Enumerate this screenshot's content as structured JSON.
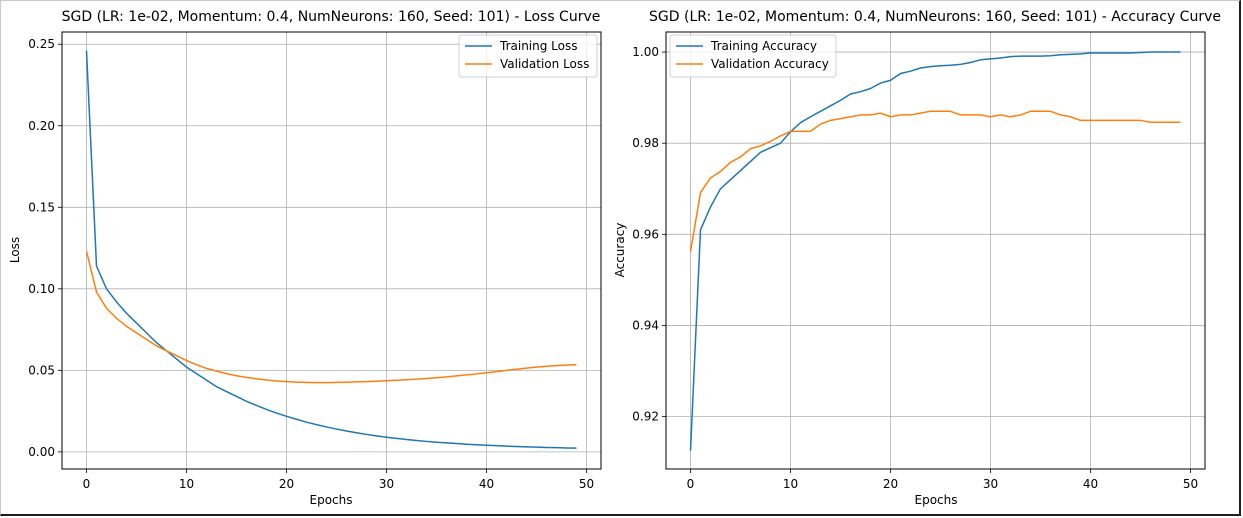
{
  "chart_data": [
    {
      "type": "line",
      "title": "SGD (LR: 1e-02, Momentum: 0.4, NumNeurons: 160, Seed: 101) - Loss Curve",
      "xlabel": "Epochs",
      "ylabel": "Loss",
      "xlim": [
        -2.45,
        51.45
      ],
      "ylim": [
        -0.0105,
        0.2575
      ],
      "xticks": [
        0,
        10,
        20,
        30,
        40,
        50
      ],
      "xtick_labels": [
        "0",
        "10",
        "20",
        "30",
        "40",
        "50"
      ],
      "yticks": [
        0.0,
        0.05,
        0.1,
        0.15,
        0.2,
        0.25
      ],
      "ytick_labels": [
        "0.00",
        "0.05",
        "0.10",
        "0.15",
        "0.20",
        "0.25"
      ],
      "grid": true,
      "legend": "upper right",
      "x": [
        0,
        1,
        2,
        3,
        4,
        5,
        6,
        7,
        8,
        9,
        10,
        11,
        12,
        13,
        14,
        15,
        16,
        17,
        18,
        19,
        20,
        21,
        22,
        23,
        24,
        25,
        26,
        27,
        28,
        29,
        30,
        31,
        32,
        33,
        34,
        35,
        36,
        37,
        38,
        39,
        40,
        41,
        42,
        43,
        44,
        45,
        46,
        47,
        48,
        49
      ],
      "series": [
        {
          "name": "Training Loss",
          "color": "#1f77b4",
          "values": [
            0.246,
            0.114,
            0.1,
            0.092,
            0.085,
            0.079,
            0.073,
            0.067,
            0.062,
            0.057,
            0.052,
            0.048,
            0.044,
            0.04,
            0.037,
            0.034,
            0.031,
            0.0285,
            0.026,
            0.0238,
            0.0218,
            0.02,
            0.0182,
            0.0167,
            0.0153,
            0.014,
            0.0128,
            0.0117,
            0.0107,
            0.0098,
            0.009,
            0.0083,
            0.0076,
            0.007,
            0.0064,
            0.0059,
            0.0055,
            0.0051,
            0.0047,
            0.0044,
            0.0041,
            0.0038,
            0.0035,
            0.0033,
            0.0031,
            0.0029,
            0.0027,
            0.0026,
            0.0024,
            0.0023
          ]
        },
        {
          "name": "Validation Loss",
          "color": "#ff7f0e",
          "values": [
            0.123,
            0.098,
            0.088,
            0.082,
            0.077,
            0.073,
            0.069,
            0.065,
            0.062,
            0.059,
            0.056,
            0.0535,
            0.0512,
            0.0495,
            0.048,
            0.0467,
            0.0457,
            0.0448,
            0.0441,
            0.0435,
            0.0431,
            0.0428,
            0.0426,
            0.0425,
            0.0425,
            0.0426,
            0.0427,
            0.0429,
            0.0431,
            0.0433,
            0.0436,
            0.0439,
            0.0442,
            0.0446,
            0.045,
            0.0455,
            0.046,
            0.0466,
            0.0472,
            0.0478,
            0.0485,
            0.0492,
            0.05,
            0.0507,
            0.0514,
            0.052,
            0.0525,
            0.0529,
            0.0532,
            0.0535
          ]
        }
      ]
    },
    {
      "type": "line",
      "title": "SGD (LR: 1e-02, Momentum: 0.4, NumNeurons: 160, Seed: 101) - Accuracy Curve",
      "xlabel": "Epochs",
      "ylabel": "Accuracy",
      "xlim": [
        -2.45,
        51.45
      ],
      "ylim": [
        0.9085,
        1.0044
      ],
      "xticks": [
        0,
        10,
        20,
        30,
        40,
        50
      ],
      "xtick_labels": [
        "0",
        "10",
        "20",
        "30",
        "40",
        "50"
      ],
      "yticks": [
        0.92,
        0.94,
        0.96,
        0.98,
        1.0
      ],
      "ytick_labels": [
        "0.92",
        "0.94",
        "0.96",
        "0.98",
        "1.00"
      ],
      "grid": true,
      "legend": "upper left",
      "x": [
        0,
        1,
        2,
        3,
        4,
        5,
        6,
        7,
        8,
        9,
        10,
        11,
        12,
        13,
        14,
        15,
        16,
        17,
        18,
        19,
        20,
        21,
        22,
        23,
        24,
        25,
        26,
        27,
        28,
        29,
        30,
        31,
        32,
        33,
        34,
        35,
        36,
        37,
        38,
        39,
        40,
        41,
        42,
        43,
        44,
        45,
        46,
        47,
        48,
        49
      ],
      "series": [
        {
          "name": "Training Accuracy",
          "color": "#1f77b4",
          "values": [
            0.9125,
            0.961,
            0.966,
            0.97,
            0.972,
            0.974,
            0.976,
            0.978,
            0.979,
            0.98,
            0.9825,
            0.9845,
            0.9858,
            0.987,
            0.9882,
            0.9894,
            0.9908,
            0.9913,
            0.992,
            0.9932,
            0.9938,
            0.9953,
            0.9958,
            0.9965,
            0.9968,
            0.997,
            0.9971,
            0.9973,
            0.9977,
            0.9983,
            0.9985,
            0.9987,
            0.999,
            0.9991,
            0.9991,
            0.9991,
            0.9992,
            0.9994,
            0.9995,
            0.9996,
            0.9998,
            0.9998,
            0.9998,
            0.9998,
            0.9998,
            0.9999,
            1.0,
            1.0,
            1.0,
            1.0
          ]
        },
        {
          "name": "Validation Accuracy",
          "color": "#ff7f0e",
          "values": [
            0.9562,
            0.9692,
            0.9724,
            0.9738,
            0.9758,
            0.977,
            0.9788,
            0.9794,
            0.9804,
            0.9816,
            0.9826,
            0.9826,
            0.9826,
            0.9842,
            0.985,
            0.9854,
            0.9858,
            0.9862,
            0.9862,
            0.9866,
            0.9858,
            0.9862,
            0.9862,
            0.9866,
            0.987,
            0.987,
            0.987,
            0.9862,
            0.9862,
            0.9862,
            0.9858,
            0.9862,
            0.9858,
            0.9862,
            0.987,
            0.987,
            0.987,
            0.9862,
            0.9858,
            0.985,
            0.985,
            0.985,
            0.985,
            0.985,
            0.985,
            0.985,
            0.9846,
            0.9846,
            0.9846,
            0.9846
          ]
        }
      ]
    }
  ]
}
